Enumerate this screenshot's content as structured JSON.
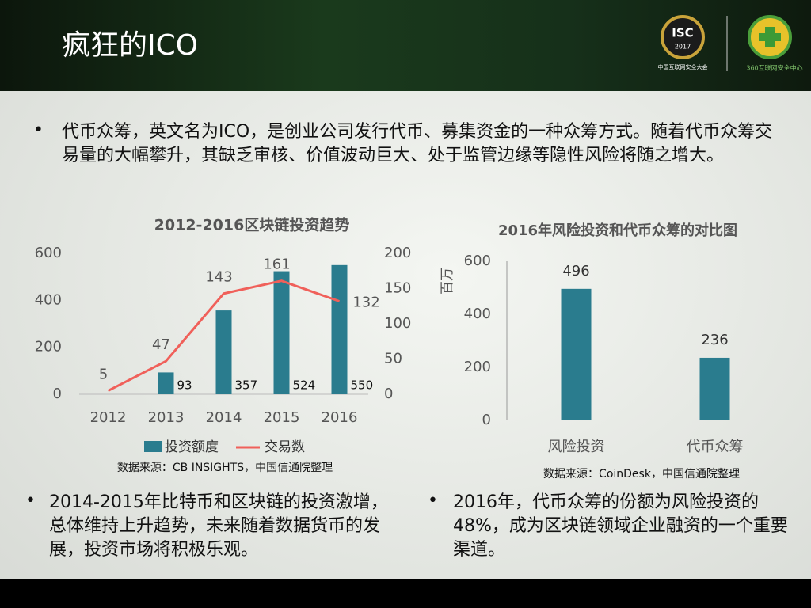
{
  "header": {
    "title": "疯狂的ICO",
    "logo_isc": "ISC",
    "logo_year": "2017",
    "logo_caption": "中国互联网安全大会",
    "logo_360": "360互联网安全中心"
  },
  "intro": "代币众筹，英文名为ICO，是创业公司发行代币、募集资金的一种众筹方式。随着代币众筹交易量的大幅攀升，其缺乏审核、价值波动巨大、处于监管边缘等隐性风险将随之增大。",
  "bullets": [
    "2014-2015年比特币和区块链的投资激增，总体维持上升趋势，未来随着数据货币的发展，投资市场将积极乐观。",
    "2016年，代币众筹的份额为风险投资的48%，成为区块链领域企业融资的一个重要渠道。"
  ],
  "chart_data": [
    {
      "type": "bar-line",
      "title": "2012-2016区块链投资趋势",
      "source": "数据来源：CB INSIGHTS，中国信通院整理",
      "categories": [
        "2012",
        "2013",
        "2014",
        "2015",
        "2016"
      ],
      "series": [
        {
          "name": "投资额度",
          "type": "bar",
          "color": "#2a7c8e",
          "values": [
            null,
            93,
            357,
            524,
            550
          ]
        },
        {
          "name": "交易数",
          "type": "line",
          "axis": "y2",
          "color": "#f0605a",
          "values": [
            5,
            47,
            143,
            161,
            132
          ]
        }
      ],
      "ylim": [
        0,
        600
      ],
      "yticks": [
        0,
        200,
        400,
        600
      ],
      "y2lim": [
        0,
        200
      ],
      "y2ticks": [
        0,
        50,
        100,
        150,
        200
      ],
      "grid": false
    },
    {
      "type": "bar",
      "title": "2016年风险投资和代币众筹的对比图",
      "source": "数据来源：CoinDesk，中国信通院整理",
      "y_label": "百万",
      "categories": [
        "风险投资",
        "代币众筹"
      ],
      "values": [
        496,
        236
      ],
      "color": "#2a7c8e",
      "ylim": [
        0,
        600
      ],
      "yticks": [
        0,
        200,
        400,
        600
      ],
      "grid": false
    }
  ]
}
